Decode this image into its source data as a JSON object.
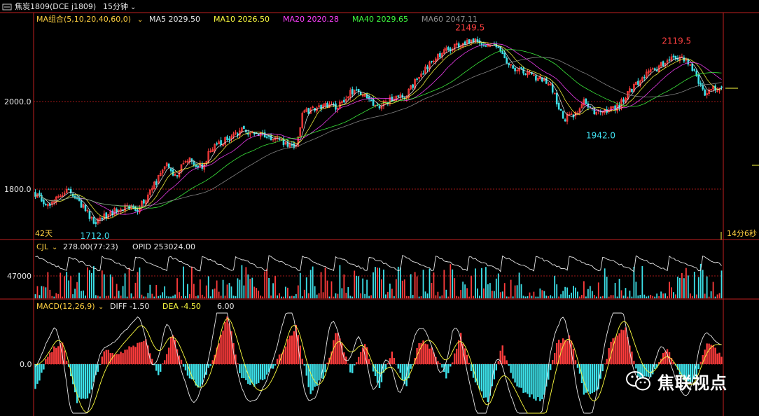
{
  "header": {
    "symbol_icon": "window-icon",
    "title": "焦炭1809(DCE j1809)",
    "period": "15分钟"
  },
  "colors": {
    "up": "#ff3c3c",
    "down": "#3ce0e8",
    "ma5": "#e8e8e8",
    "ma10": "#ffff40",
    "ma20": "#ff40ff",
    "ma40": "#40ff40",
    "ma60": "#909090",
    "label": "#ffd040",
    "axis_red": "#c02020"
  },
  "main_panel": {
    "ma_label": "MA组合(5,10,20,40,60,0)",
    "ma_values": [
      {
        "name": "MA5",
        "text": "MA5 2029.50"
      },
      {
        "name": "MA10",
        "text": "MA10 2026.50"
      },
      {
        "name": "MA20",
        "text": "MA20 2020.28"
      },
      {
        "name": "MA40",
        "text": "MA40 2029.65"
      },
      {
        "name": "MA60",
        "text": "MA60 2047.11"
      }
    ],
    "days_label": "42天",
    "countdown_label": "14分6秒"
  },
  "volume_panel": {
    "label": "CJL",
    "vol_text": "278.00(77:23)",
    "opid_text": "OPID 253024.00"
  },
  "macd_panel": {
    "label": "MACD(12,26,9)",
    "diff_text": "DIFF -1.50",
    "dea_text": "DEA -4.50",
    "macd_text": "6.00"
  },
  "watermark": {
    "icon": "wechat-icon",
    "text": "焦联视点"
  },
  "chart_data": [
    {
      "type": "candlestick",
      "panel": "price",
      "y_ticks": [
        "2000.0",
        "1800.0"
      ],
      "y_tick_values": [
        2000,
        1800
      ],
      "ylim": [
        1680,
        2200
      ],
      "annotations": [
        {
          "label": "2149.5",
          "value": 2149.5,
          "kind": "high",
          "at_fraction": 0.63
        },
        {
          "label": "2119.5",
          "value": 2119.5,
          "kind": "high",
          "at_fraction": 0.93
        },
        {
          "label": "1942.0",
          "value": 1942.0,
          "kind": "low",
          "at_fraction": 0.82
        },
        {
          "label": "1712.0",
          "value": 1712.0,
          "kind": "low",
          "at_fraction": 0.085
        }
      ],
      "close_path": [
        [
          0.0,
          1790
        ],
        [
          0.02,
          1760
        ],
        [
          0.045,
          1800
        ],
        [
          0.06,
          1780
        ],
        [
          0.085,
          1725
        ],
        [
          0.11,
          1745
        ],
        [
          0.13,
          1760
        ],
        [
          0.15,
          1755
        ],
        [
          0.17,
          1800
        ],
        [
          0.19,
          1855
        ],
        [
          0.205,
          1830
        ],
        [
          0.22,
          1870
        ],
        [
          0.245,
          1850
        ],
        [
          0.255,
          1890
        ],
        [
          0.28,
          1915
        ],
        [
          0.3,
          1935
        ],
        [
          0.32,
          1925
        ],
        [
          0.34,
          1920
        ],
        [
          0.36,
          1905
        ],
        [
          0.38,
          1900
        ],
        [
          0.39,
          1975
        ],
        [
          0.41,
          1985
        ],
        [
          0.425,
          1990
        ],
        [
          0.44,
          1985
        ],
        [
          0.46,
          2025
        ],
        [
          0.475,
          2015
        ],
        [
          0.49,
          2000
        ],
        [
          0.5,
          1990
        ],
        [
          0.52,
          2005
        ],
        [
          0.54,
          2015
        ],
        [
          0.56,
          2060
        ],
        [
          0.58,
          2095
        ],
        [
          0.6,
          2120
        ],
        [
          0.62,
          2130
        ],
        [
          0.635,
          2140
        ],
        [
          0.655,
          2135
        ],
        [
          0.675,
          2125
        ],
        [
          0.69,
          2080
        ],
        [
          0.71,
          2070
        ],
        [
          0.73,
          2055
        ],
        [
          0.75,
          2040
        ],
        [
          0.77,
          1960
        ],
        [
          0.79,
          1975
        ],
        [
          0.8,
          2005
        ],
        [
          0.815,
          1975
        ],
        [
          0.83,
          1980
        ],
        [
          0.85,
          1990
        ],
        [
          0.87,
          2030
        ],
        [
          0.89,
          2060
        ],
        [
          0.91,
          2080
        ],
        [
          0.93,
          2105
        ],
        [
          0.95,
          2090
        ],
        [
          0.96,
          2070
        ],
        [
          0.975,
          2020
        ],
        [
          0.99,
          2030
        ],
        [
          1.0,
          2029.5
        ]
      ]
    },
    {
      "type": "bar",
      "panel": "volume",
      "y_ticks": [
        "47000"
      ],
      "y_tick_values": [
        47000
      ],
      "ylim": [
        0,
        80000
      ]
    },
    {
      "type": "bar",
      "panel": "macd",
      "y_ticks": [
        "0.0"
      ],
      "y_tick_values": [
        0
      ],
      "ylim": [
        -40,
        45
      ],
      "hist_path": [
        [
          0.0,
          -22
        ],
        [
          0.02,
          10
        ],
        [
          0.04,
          18
        ],
        [
          0.06,
          -30
        ],
        [
          0.08,
          -25
        ],
        [
          0.1,
          12
        ],
        [
          0.12,
          8
        ],
        [
          0.14,
          14
        ],
        [
          0.16,
          20
        ],
        [
          0.18,
          -10
        ],
        [
          0.2,
          25
        ],
        [
          0.22,
          -8
        ],
        [
          0.24,
          -20
        ],
        [
          0.26,
          6
        ],
        [
          0.28,
          40
        ],
        [
          0.3,
          -12
        ],
        [
          0.32,
          -18
        ],
        [
          0.34,
          -8
        ],
        [
          0.36,
          10
        ],
        [
          0.38,
          32
        ],
        [
          0.4,
          -25
        ],
        [
          0.42,
          -10
        ],
        [
          0.44,
          28
        ],
        [
          0.46,
          -8
        ],
        [
          0.48,
          18
        ],
        [
          0.5,
          -20
        ],
        [
          0.52,
          10
        ],
        [
          0.54,
          -20
        ],
        [
          0.56,
          20
        ],
        [
          0.58,
          12
        ],
        [
          0.6,
          -12
        ],
        [
          0.62,
          24
        ],
        [
          0.64,
          -15
        ],
        [
          0.66,
          -32
        ],
        [
          0.68,
          15
        ],
        [
          0.7,
          -18
        ],
        [
          0.72,
          -26
        ],
        [
          0.74,
          -30
        ],
        [
          0.76,
          18
        ],
        [
          0.78,
          22
        ],
        [
          0.8,
          -25
        ],
        [
          0.82,
          -20
        ],
        [
          0.84,
          20
        ],
        [
          0.86,
          30
        ],
        [
          0.88,
          -12
        ],
        [
          0.9,
          -8
        ],
        [
          0.92,
          14
        ],
        [
          0.94,
          -10
        ],
        [
          0.96,
          -15
        ],
        [
          0.98,
          18
        ],
        [
          1.0,
          6
        ]
      ]
    }
  ]
}
